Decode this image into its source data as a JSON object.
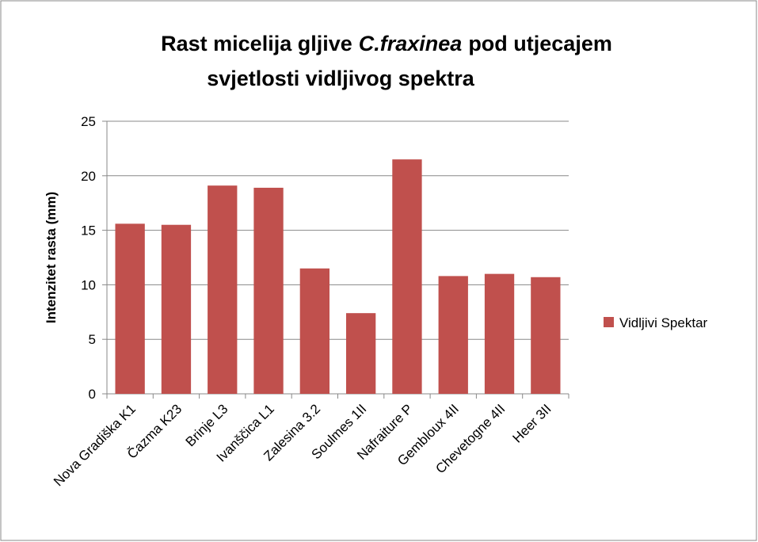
{
  "chart_data": {
    "type": "bar",
    "title": [
      "Rast micelija gljive",
      "C.fraxinea",
      "pod utjecajem",
      "svjetlosti vidljivog spektra"
    ],
    "ylabel": "Intenzitet rasta (mm)",
    "categories": [
      "Nova Gradiška K1",
      "Čazma K23",
      "Brinje L3",
      "Ivanščica L1",
      "Zalesina 3.2",
      "Soulmes 1II",
      "Nafraiture P",
      "Gembloux 4II",
      "Chevetogne 4II",
      "Heer 3II"
    ],
    "series": [
      {
        "name": "Vidljivi Spektar",
        "color": "#c0504d",
        "values": [
          15.6,
          15.5,
          19.1,
          18.9,
          11.5,
          7.4,
          21.5,
          10.8,
          11,
          10.7
        ]
      }
    ],
    "ylim": [
      0,
      25
    ],
    "yticks": [
      0,
      5,
      10,
      15,
      20,
      25
    ],
    "grid": true,
    "legend": "right"
  }
}
